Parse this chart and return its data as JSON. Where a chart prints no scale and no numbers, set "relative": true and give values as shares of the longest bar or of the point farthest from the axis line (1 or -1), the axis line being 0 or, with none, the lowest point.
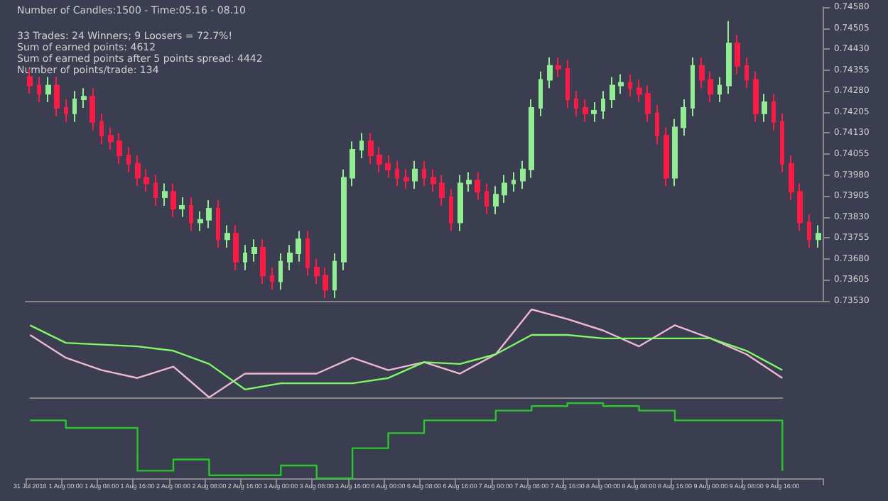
{
  "chart_data": [
    {
      "type": "candlestick",
      "subtitle": "Number of Candles:1500 - Time:05.16 - 08.10",
      "annotations": [
        "33 Trades: 24 Winners; 9 Loosers = 72.7%!",
        "Sum of earned points: 4612",
        "Sum of earned points after 5 points spread: 4442",
        "Number of points/trade: 134"
      ],
      "categories": [
        null,
        null,
        null,
        null,
        null,
        null,
        null,
        null,
        null,
        null,
        null,
        null,
        null,
        null,
        null,
        null,
        null,
        null,
        null,
        null,
        null,
        null,
        null,
        null,
        null,
        null,
        null,
        null,
        null,
        null,
        null,
        null,
        null,
        null,
        null,
        null,
        null,
        null,
        null,
        null,
        null,
        null,
        null,
        null,
        null,
        null,
        null,
        null,
        null,
        null,
        null,
        null,
        null,
        null,
        null,
        null,
        null,
        null,
        null,
        null,
        null,
        null,
        null,
        null,
        null,
        null,
        null,
        null,
        null,
        null,
        null,
        null,
        null,
        null,
        null,
        null,
        null,
        null,
        null,
        null,
        null,
        null,
        null,
        null,
        null,
        null,
        null,
        null,
        null
      ],
      "ohlc": [
        [
          0.7433,
          0.7436,
          0.7427,
          0.743
        ],
        [
          0.743,
          0.7433,
          0.7424,
          0.7427
        ],
        [
          0.7427,
          0.7433,
          0.7424,
          0.743
        ],
        [
          0.743,
          0.7433,
          0.7419,
          0.7422
        ],
        [
          0.7422,
          0.7425,
          0.7417,
          0.742
        ],
        [
          0.742,
          0.7428,
          0.7417,
          0.7425
        ],
        [
          0.7425,
          0.7429,
          0.7422,
          0.7426
        ],
        [
          0.7426,
          0.7429,
          0.7414,
          0.7417
        ],
        [
          0.7417,
          0.742,
          0.7409,
          0.7412
        ],
        [
          0.7412,
          0.7415,
          0.7407,
          0.741
        ],
        [
          0.741,
          0.7413,
          0.7402,
          0.7405
        ],
        [
          0.7405,
          0.7408,
          0.7399,
          0.7402
        ],
        [
          0.7402,
          0.7405,
          0.7394,
          0.7397
        ],
        [
          0.7397,
          0.74,
          0.7392,
          0.7395
        ],
        [
          0.7395,
          0.7398,
          0.7387,
          0.739
        ],
        [
          0.739,
          0.7395,
          0.7387,
          0.7392
        ],
        [
          0.7392,
          0.7395,
          0.7383,
          0.7386
        ],
        [
          0.7386,
          0.739,
          0.7383,
          0.7387
        ],
        [
          0.7387,
          0.739,
          0.7378,
          0.7381
        ],
        [
          0.7381,
          0.7385,
          0.7378,
          0.7382
        ],
        [
          0.7382,
          0.7389,
          0.7379,
          0.7386
        ],
        [
          0.7386,
          0.7389,
          0.7372,
          0.7375
        ],
        [
          0.7375,
          0.738,
          0.7372,
          0.7377
        ],
        [
          0.7377,
          0.738,
          0.7364,
          0.7367
        ],
        [
          0.7367,
          0.7373,
          0.7364,
          0.737
        ],
        [
          0.737,
          0.7375,
          0.7367,
          0.7372
        ],
        [
          0.7372,
          0.7375,
          0.7359,
          0.7362
        ],
        [
          0.7362,
          0.7365,
          0.7357,
          0.736
        ],
        [
          0.736,
          0.737,
          0.7357,
          0.7367
        ],
        [
          0.7367,
          0.7373,
          0.7364,
          0.737
        ],
        [
          0.737,
          0.7378,
          0.7367,
          0.7375
        ],
        [
          0.7375,
          0.7378,
          0.7362,
          0.7365
        ],
        [
          0.7365,
          0.7368,
          0.7359,
          0.7362
        ],
        [
          0.7362,
          0.7365,
          0.7354,
          0.7357
        ],
        [
          0.7357,
          0.737,
          0.7354,
          0.7367
        ],
        [
          0.7367,
          0.74,
          0.7364,
          0.7397
        ],
        [
          0.7397,
          0.741,
          0.7394,
          0.7407
        ],
        [
          0.7407,
          0.7413,
          0.7404,
          0.741
        ],
        [
          0.741,
          0.7413,
          0.7402,
          0.7405
        ],
        [
          0.7405,
          0.7408,
          0.7399,
          0.7402
        ],
        [
          0.7402,
          0.7405,
          0.7397,
          0.74
        ],
        [
          0.74,
          0.7403,
          0.7394,
          0.7397
        ],
        [
          0.7397,
          0.74,
          0.7393,
          0.7396
        ],
        [
          0.7396,
          0.7403,
          0.7393,
          0.74
        ],
        [
          0.74,
          0.7403,
          0.7394,
          0.7397
        ],
        [
          0.7397,
          0.74,
          0.7392,
          0.7395
        ],
        [
          0.7395,
          0.7398,
          0.7387,
          0.739
        ],
        [
          0.739,
          0.7393,
          0.7378,
          0.7381
        ],
        [
          0.7381,
          0.7398,
          0.7378,
          0.7395
        ],
        [
          0.7395,
          0.7399,
          0.7392,
          0.7396
        ],
        [
          0.7396,
          0.7399,
          0.7389,
          0.7392
        ],
        [
          0.7392,
          0.7395,
          0.7384,
          0.7387
        ],
        [
          0.7387,
          0.7394,
          0.7384,
          0.7391
        ],
        [
          0.7391,
          0.7398,
          0.7388,
          0.7395
        ],
        [
          0.7395,
          0.7399,
          0.7392,
          0.7396
        ],
        [
          0.7396,
          0.7403,
          0.7393,
          0.74
        ],
        [
          0.74,
          0.7425,
          0.7397,
          0.7422
        ],
        [
          0.7422,
          0.7435,
          0.7419,
          0.7432
        ],
        [
          0.7432,
          0.744,
          0.7429,
          0.7437
        ],
        [
          0.7437,
          0.744,
          0.7433,
          0.7436
        ],
        [
          0.7436,
          0.7439,
          0.7422,
          0.7425
        ],
        [
          0.7425,
          0.7428,
          0.7419,
          0.7422
        ],
        [
          0.7422,
          0.7425,
          0.7417,
          0.742
        ],
        [
          0.742,
          0.7424,
          0.7417,
          0.7421
        ],
        [
          0.7421,
          0.7428,
          0.7418,
          0.7425
        ],
        [
          0.7425,
          0.7433,
          0.7422,
          0.743
        ],
        [
          0.743,
          0.7434,
          0.7427,
          0.7431
        ],
        [
          0.7431,
          0.7434,
          0.7426,
          0.7429
        ],
        [
          0.7429,
          0.7432,
          0.7424,
          0.7427
        ],
        [
          0.7427,
          0.743,
          0.7417,
          0.742
        ],
        [
          0.742,
          0.7423,
          0.7409,
          0.7412
        ],
        [
          0.7412,
          0.7415,
          0.7394,
          0.7397
        ],
        [
          0.7397,
          0.7418,
          0.7394,
          0.7415
        ],
        [
          0.7415,
          0.7425,
          0.7412,
          0.7422
        ],
        [
          0.7422,
          0.744,
          0.7419,
          0.7437
        ],
        [
          0.7437,
          0.744,
          0.7429,
          0.7432
        ],
        [
          0.7432,
          0.7435,
          0.7424,
          0.7427
        ],
        [
          0.7427,
          0.7433,
          0.7424,
          0.743
        ],
        [
          0.743,
          0.7453,
          0.7427,
          0.7445
        ],
        [
          0.7445,
          0.7448,
          0.7434,
          0.7437
        ],
        [
          0.7437,
          0.744,
          0.7429,
          0.7432
        ],
        [
          0.7432,
          0.7435,
          0.7417,
          0.742
        ],
        [
          0.742,
          0.7427,
          0.7417,
          0.7424
        ],
        [
          0.7424,
          0.7427,
          0.7414,
          0.7417
        ],
        [
          0.7417,
          0.742,
          0.7399,
          0.7402
        ],
        [
          0.7402,
          0.7405,
          0.7389,
          0.7392
        ],
        [
          0.7392,
          0.7395,
          0.7378,
          0.7381
        ],
        [
          0.7381,
          0.7384,
          0.7372,
          0.7375
        ],
        [
          0.7375,
          0.738,
          0.7372,
          0.7377
        ]
      ],
      "colors": [
        "#ff1a45",
        "#ff1a45",
        "#90ee90",
        "#ff1a45",
        "#ff1a45",
        "#90ee90",
        "#90ee90",
        "#ff1a45",
        "#ff1a45",
        "#ff1a45",
        "#ff1a45",
        "#ff1a45",
        "#ff1a45",
        "#ff1a45",
        "#ff1a45",
        "#90ee90",
        "#ff1a45",
        "#90ee90",
        "#ff1a45",
        "#90ee90",
        "#90ee90",
        "#ff1a45",
        "#90ee90",
        "#ff1a45",
        "#90ee90",
        "#90ee90",
        "#ff1a45",
        "#ff1a45",
        "#90ee90",
        "#90ee90",
        "#90ee90",
        "#ff1a45",
        "#ff1a45",
        "#ff1a45",
        "#90ee90",
        "#90ee90",
        "#90ee90",
        "#90ee90",
        "#ff1a45",
        "#ff1a45",
        "#ff1a45",
        "#ff1a45",
        "#ff1a45",
        "#90ee90",
        "#ff1a45",
        "#ff1a45",
        "#ff1a45",
        "#ff1a45",
        "#90ee90",
        "#90ee90",
        "#ff1a45",
        "#ff1a45",
        "#90ee90",
        "#90ee90",
        "#90ee90",
        "#90ee90",
        "#90ee90",
        "#90ee90",
        "#90ee90",
        "#ff1a45",
        "#ff1a45",
        "#ff1a45",
        "#ff1a45",
        "#90ee90",
        "#90ee90",
        "#90ee90",
        "#90ee90",
        "#ff1a45",
        "#ff1a45",
        "#ff1a45",
        "#ff1a45",
        "#ff1a45",
        "#90ee90",
        "#90ee90",
        "#90ee90",
        "#ff1a45",
        "#ff1a45",
        "#90ee90",
        "#90ee90",
        "#ff1a45",
        "#ff1a45",
        "#ff1a45",
        "#90ee90",
        "#ff1a45",
        "#ff1a45",
        "#ff1a45",
        "#ff1a45",
        "#ff1a45",
        "#90ee90"
      ],
      "ylim": [
        0.7353,
        0.7458
      ],
      "yticks": [
        {
          "value": 0.7353,
          "label": "0.73530"
        },
        {
          "value": 0.73605,
          "label": "0.73605"
        },
        {
          "value": 0.7368,
          "label": "0.73680"
        },
        {
          "value": 0.73755,
          "label": "0.73755"
        },
        {
          "value": 0.7383,
          "label": "0.73830"
        },
        {
          "value": 0.73905,
          "label": "0.73905"
        },
        {
          "value": 0.7398,
          "label": "0.73980"
        },
        {
          "value": 0.74055,
          "label": "0.74055"
        },
        {
          "value": 0.7413,
          "label": "0.74130"
        },
        {
          "value": 0.74205,
          "label": "0.74205"
        },
        {
          "value": 0.7428,
          "label": "0.74280"
        },
        {
          "value": 0.74355,
          "label": "0.74355"
        },
        {
          "value": 0.7443,
          "label": "0.74430"
        },
        {
          "value": 0.74505,
          "label": "0.74505"
        },
        {
          "value": 0.7458,
          "label": "0.74580"
        }
      ],
      "tick_labels": "y"
    },
    {
      "type": "line",
      "relative": true,
      "tick_labels": false,
      "categories": [
        null,
        null,
        null,
        null,
        null,
        null,
        null,
        null,
        null,
        null,
        null,
        null,
        null,
        null,
        null,
        null,
        null,
        null,
        null,
        null,
        null,
        null
      ],
      "series": [
        {
          "color": "#f0b8d0",
          "values": [
            0.71,
            0.45,
            0.31,
            0.22,
            0.35,
            0,
            0.27,
            0.27,
            0.27,
            0.45,
            0.31,
            0.4,
            0.27,
            0.49,
            1,
            0.89,
            0.76,
            0.58,
            0.82,
            0.67,
            0.49,
            0.22
          ]
        },
        {
          "color": "#7cfc60",
          "values": [
            0.82,
            0.62,
            0.6,
            0.58,
            0.53,
            0.38,
            0.09,
            0.16,
            0.16,
            0.16,
            0.22,
            0.4,
            0.38,
            0.49,
            0.71,
            0.71,
            0.67,
            0.67,
            0.67,
            0.67,
            0.53,
            0.31
          ]
        }
      ]
    },
    {
      "type": "step",
      "relative": true,
      "tick_labels": "x",
      "categories": [
        "31 Jul 2018",
        null,
        null,
        null,
        "1 Aug 00:00",
        null,
        null,
        null,
        "1 Aug 08:00",
        null,
        null,
        null,
        "1 Aug 16:00",
        null,
        null,
        null,
        "2 Aug 00:00",
        null,
        null,
        null,
        "2 Aug 08:00",
        null,
        null,
        null,
        "2 Aug 16:00",
        null,
        null,
        null,
        "3 Aug 00:00",
        null,
        null,
        null,
        "3 Aug 08:00",
        null,
        null,
        null,
        "3 Aug 16:00",
        null,
        null,
        null,
        "6 Aug 00:00",
        null,
        null,
        null,
        "6 Aug 08:00",
        null,
        null,
        null,
        "6 Aug 16:00",
        null,
        null,
        null,
        "7 Aug 00:00",
        null,
        null,
        null,
        "7 Aug 08:00",
        null,
        null,
        null,
        "7 Aug 16:00",
        null,
        null,
        null,
        "8 Aug 00:00",
        null,
        null,
        null,
        "8 Aug 08:00",
        null,
        null,
        null,
        "8 Aug 16:00",
        null,
        null,
        null,
        "9 Aug 00:00",
        null,
        null,
        null,
        "9 Aug 08:00",
        null,
        null,
        null,
        "9 Aug 16:00",
        null,
        null,
        null,
        null
      ],
      "series": [
        {
          "color": "#22cc22",
          "x": [
            "31 Jul 2018",
            "1 Aug 00:00",
            "1 Aug 08:00",
            "1 Aug 16:00",
            "2 Aug 00:00",
            "2 Aug 08:00",
            "2 Aug 16:00",
            "3 Aug 00:00",
            "3 Aug 08:00",
            "3 Aug 16:00",
            "6 Aug 00:00",
            "6 Aug 08:00",
            "6 Aug 16:00",
            "7 Aug 00:00",
            "7 Aug 08:00",
            "7 Aug 16:00",
            "8 Aug 00:00",
            "8 Aug 08:00",
            "8 Aug 16:00",
            "9 Aug 00:00",
            "9 Aug 08:00",
            "9 Aug 16:00"
          ],
          "values": [
            0.77,
            0.67,
            0.67,
            0.1,
            0.25,
            0.04,
            0.04,
            0.17,
            0,
            0.4,
            0.6,
            0.77,
            0.77,
            0.9,
            0.96,
            1,
            0.96,
            0.9,
            0.77,
            0.77,
            0.77,
            0.1
          ]
        }
      ]
    }
  ]
}
